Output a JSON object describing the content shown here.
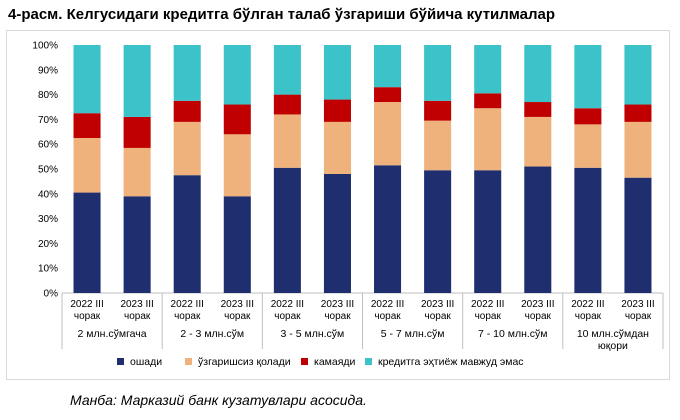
{
  "title": "4-расм. Келгусидаги кредитга бўлган талаб ўзгариши бўйича кутилмалар",
  "source": "Манба: Марказий банк кузатувлари асосида.",
  "colors": {
    "oshadi": "#1f2e6e",
    "ozgarishsiz": "#f0b27c",
    "kamayadi": "#c00000",
    "yoq": "#3bc3c9"
  },
  "chart_data": {
    "type": "bar",
    "stacked": true,
    "ylim": [
      0,
      100
    ],
    "yticks": [
      "0%",
      "10%",
      "20%",
      "30%",
      "40%",
      "50%",
      "60%",
      "70%",
      "80%",
      "90%",
      "100%"
    ],
    "bars": [
      {
        "year": "2022 III",
        "sub": "чорак",
        "values": [
          40.5,
          22,
          10,
          27.5
        ]
      },
      {
        "year": "2023 III",
        "sub": "чорак",
        "values": [
          39,
          19.5,
          12.5,
          29
        ]
      },
      {
        "year": "2022 III",
        "sub": "чорак",
        "values": [
          47.5,
          21.5,
          8.5,
          22.5
        ]
      },
      {
        "year": "2023 III",
        "sub": "чорак",
        "values": [
          39,
          25,
          12,
          24
        ]
      },
      {
        "year": "2022 III",
        "sub": "чорак",
        "values": [
          50.5,
          21.5,
          8,
          20
        ]
      },
      {
        "year": "2023 III",
        "sub": "чорак",
        "values": [
          48,
          21,
          9,
          22
        ]
      },
      {
        "year": "2022 III",
        "sub": "чорак",
        "values": [
          51.5,
          25.5,
          6,
          17
        ]
      },
      {
        "year": "2023 III",
        "sub": "чорак",
        "values": [
          49.5,
          20,
          8,
          22.5
        ]
      },
      {
        "year": "2022 III",
        "sub": "чорак",
        "values": [
          49.5,
          25,
          6,
          19.5
        ]
      },
      {
        "year": "2023 III",
        "sub": "чорак",
        "values": [
          51,
          20,
          6,
          23
        ]
      },
      {
        "year": "2022 III",
        "sub": "чорак",
        "values": [
          50.5,
          17.5,
          6.5,
          25.5
        ]
      },
      {
        "year": "2023 III",
        "sub": "чорак",
        "values": [
          46.5,
          22.5,
          7,
          24
        ]
      }
    ],
    "groups": [
      {
        "lines": [
          "2 млн.сўмгача"
        ]
      },
      {
        "lines": [
          "2 - 3 млн.сўм"
        ]
      },
      {
        "lines": [
          "3 - 5 млн.сўм"
        ]
      },
      {
        "lines": [
          "5 - 7 млн.сўм"
        ]
      },
      {
        "lines": [
          "7 - 10 млн.сўм"
        ]
      },
      {
        "lines": [
          "10 млн.сўмдан",
          "юқори"
        ]
      }
    ],
    "series": [
      {
        "name": "ошади",
        "color_key": "oshadi"
      },
      {
        "name": "ўзгаришсиз қолади",
        "color_key": "ozgarishsiz"
      },
      {
        "name": "камаяди",
        "color_key": "kamayadi"
      },
      {
        "name": "кредитга эҳтиёж мавжуд эмас",
        "color_key": "yoq"
      }
    ]
  }
}
